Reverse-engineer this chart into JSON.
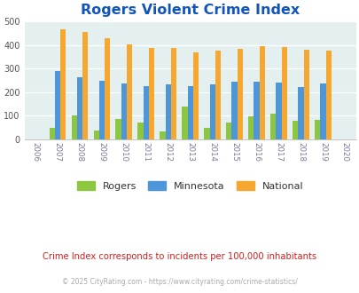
{
  "title": "Rogers Violent Crime Index",
  "plot_years": [
    2007,
    2008,
    2009,
    2010,
    2011,
    2012,
    2013,
    2014,
    2015,
    2016,
    2017,
    2018,
    2019
  ],
  "rogers": [
    50,
    100,
    38,
    87,
    70,
    35,
    140,
    48,
    73,
    96,
    108,
    78,
    83
  ],
  "minnesota": [
    292,
    265,
    248,
    238,
    225,
    235,
    225,
    232,
    246,
    246,
    242,
    224,
    238
  ],
  "national": [
    468,
    455,
    432,
    405,
    388,
    388,
    368,
    378,
    383,
    397,
    394,
    381,
    379
  ],
  "all_xtick_labels": [
    "2006",
    "2007",
    "2008",
    "2009",
    "2010",
    "2011",
    "2012",
    "2013",
    "2014",
    "2015",
    "2016",
    "2017",
    "2018",
    "2019",
    "2020"
  ],
  "bar_width": 0.25,
  "rogers_color": "#8dc63f",
  "minnesota_color": "#4d96d9",
  "national_color": "#f5a730",
  "bg_color": "#e4f0f0",
  "title_color": "#1155bb",
  "ylim": [
    0,
    500
  ],
  "yticks": [
    0,
    100,
    200,
    300,
    400,
    500
  ],
  "footer1": "Crime Index corresponds to incidents per 100,000 inhabitants",
  "footer2": "© 2025 CityRating.com - https://www.cityrating.com/crime-statistics/",
  "legend_labels": [
    "Rogers",
    "Minnesota",
    "National"
  ],
  "title_fontsize": 11.5,
  "footer1_color": "#cc2222",
  "footer2_color": "#aaaaaa",
  "axis_label_color": "#777799"
}
